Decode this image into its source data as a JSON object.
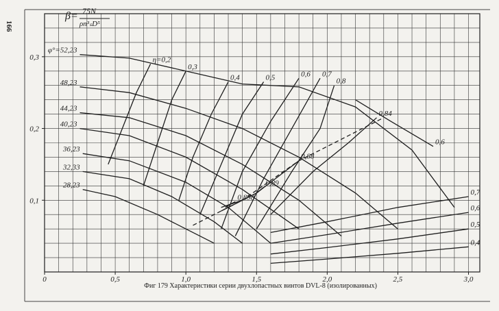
{
  "page_number": "166",
  "chart_data": {
    "type": "line",
    "beta_label": {
      "symbol": "β=",
      "numerator": "75N",
      "denominator": "ρn³ₛD⁵"
    },
    "caption": "Фиг 179 Характеристики серии двухлопастных винтов DVL-8 (изолированных)",
    "color": "#1e1e1e",
    "grid": true,
    "grid_step": {
      "x": 0.1,
      "y": 0.02
    },
    "xlim": [
      0,
      3.08
    ],
    "ylim": [
      0,
      0.36
    ],
    "xticks": [
      {
        "value": 0,
        "label": "0"
      },
      {
        "value": 0.5,
        "label": "0,5"
      },
      {
        "value": 1.0,
        "label": "1,0"
      },
      {
        "value": 1.5,
        "label": "1,5"
      },
      {
        "value": 2.0,
        "label": "2,0"
      },
      {
        "value": 2.5,
        "label": "2,5"
      },
      {
        "value": 3.0,
        "label": "3,0"
      }
    ],
    "yticks": [
      {
        "value": 0.1,
        "label": "0,1"
      },
      {
        "value": 0.2,
        "label": "0,2"
      },
      {
        "value": 0.3,
        "label": "0,3"
      }
    ],
    "series": [
      {
        "name": "φ°=52,23",
        "label_at": "start",
        "x": [
          0.25,
          0.6,
          1.0,
          1.4,
          1.8,
          2.2,
          2.6,
          2.9
        ],
        "values": [
          0.303,
          0.298,
          0.28,
          0.262,
          0.258,
          0.23,
          0.17,
          0.09
        ]
      },
      {
        "name": "48,23",
        "label_at": "start",
        "x": [
          0.25,
          0.6,
          1.0,
          1.4,
          1.8,
          2.2,
          2.5
        ],
        "values": [
          0.258,
          0.25,
          0.228,
          0.2,
          0.16,
          0.11,
          0.06
        ]
      },
      {
        "name": "44,23",
        "label_at": "start",
        "x": [
          0.25,
          0.6,
          1.0,
          1.4,
          1.8,
          2.1
        ],
        "values": [
          0.222,
          0.215,
          0.19,
          0.15,
          0.1,
          0.05
        ]
      },
      {
        "name": "40,23",
        "label_at": "start",
        "x": [
          0.25,
          0.6,
          1.0,
          1.4,
          1.8
        ],
        "values": [
          0.2,
          0.19,
          0.16,
          0.115,
          0.06
        ]
      },
      {
        "name": "36,23",
        "label_at": "start",
        "x": [
          0.27,
          0.6,
          1.0,
          1.3,
          1.6
        ],
        "values": [
          0.165,
          0.155,
          0.125,
          0.09,
          0.04
        ]
      },
      {
        "name": "32,33",
        "label_at": "start",
        "x": [
          0.27,
          0.6,
          0.9,
          1.2,
          1.4
        ],
        "values": [
          0.14,
          0.13,
          0.105,
          0.07,
          0.04
        ]
      },
      {
        "name": "28,23",
        "label_at": "start",
        "x": [
          0.27,
          0.5,
          0.8,
          1.0,
          1.2
        ],
        "values": [
          0.115,
          0.105,
          0.08,
          0.06,
          0.04
        ]
      },
      {
        "name": "η=0,2",
        "label_at": "end",
        "x": [
          0.45,
          0.55,
          0.65,
          0.75
        ],
        "values": [
          0.15,
          0.2,
          0.25,
          0.29
        ]
      },
      {
        "name": "0,3",
        "label_at": "end",
        "x": [
          0.7,
          0.8,
          0.9,
          1.0
        ],
        "values": [
          0.12,
          0.18,
          0.24,
          0.28
        ]
      },
      {
        "name": "0,4",
        "label_at": "end",
        "x": [
          0.95,
          1.05,
          1.18,
          1.3
        ],
        "values": [
          0.1,
          0.16,
          0.22,
          0.265
        ]
      },
      {
        "name": "0,5",
        "label_at": "end",
        "x": [
          1.1,
          1.25,
          1.4,
          1.55
        ],
        "values": [
          0.08,
          0.15,
          0.22,
          0.265
        ]
      },
      {
        "name": "0,6",
        "label_at": "end",
        "x": [
          1.25,
          1.4,
          1.6,
          1.8
        ],
        "values": [
          0.06,
          0.14,
          0.21,
          0.27
        ]
      },
      {
        "name": "0,7",
        "label_at": "end",
        "x": [
          1.35,
          1.55,
          1.75,
          1.95
        ],
        "values": [
          0.05,
          0.13,
          0.2,
          0.27
        ]
      },
      {
        "name": "0,8",
        "label_at": "end",
        "x": [
          1.5,
          1.75,
          1.95,
          2.05
        ],
        "values": [
          0.06,
          0.14,
          0.2,
          0.26
        ]
      },
      {
        "name": "0,84",
        "label_at": "end",
        "x": [
          1.6,
          1.9,
          2.15,
          2.35
        ],
        "values": [
          0.08,
          0.14,
          0.18,
          0.215
        ]
      },
      {
        "name": "0,88",
        "label_at": "end",
        "x": [
          1.25,
          1.5,
          1.7,
          1.8
        ],
        "values": [
          0.085,
          0.11,
          0.14,
          0.155
        ]
      },
      {
        "name": "0,89",
        "label_at": "end",
        "x": [
          1.25,
          1.4,
          1.5,
          1.55
        ],
        "values": [
          0.09,
          0.1,
          0.11,
          0.118
        ]
      },
      {
        "name": "0,898",
        "label_at": "end",
        "x": [
          1.28,
          1.32,
          1.35
        ],
        "values": [
          0.09,
          0.095,
          0.098
        ]
      },
      {
        "name": "0,6",
        "label_at": "end",
        "x": [
          2.2,
          2.45,
          2.75
        ],
        "values": [
          0.24,
          0.21,
          0.175
        ]
      },
      {
        "name": "0,7",
        "label_at": "end",
        "x": [
          1.6,
          2.0,
          2.5,
          3.0
        ],
        "values": [
          0.055,
          0.07,
          0.09,
          0.105
        ]
      },
      {
        "name": "0,6",
        "label_at": "end",
        "x": [
          1.6,
          2.0,
          2.5,
          3.0
        ],
        "values": [
          0.04,
          0.052,
          0.068,
          0.083
        ]
      },
      {
        "name": "0,5",
        "label_at": "end",
        "x": [
          1.6,
          2.0,
          2.5,
          3.0
        ],
        "values": [
          0.025,
          0.034,
          0.046,
          0.06
        ]
      },
      {
        "name": "0,4",
        "label_at": "end",
        "x": [
          1.6,
          2.0,
          2.5,
          3.0
        ],
        "values": [
          0.012,
          0.018,
          0.026,
          0.035
        ]
      },
      {
        "dashed": true,
        "x": [
          1.05,
          1.4,
          1.8,
          2.1,
          2.4
        ],
        "values": [
          0.065,
          0.1,
          0.155,
          0.185,
          0.215
        ]
      }
    ]
  }
}
